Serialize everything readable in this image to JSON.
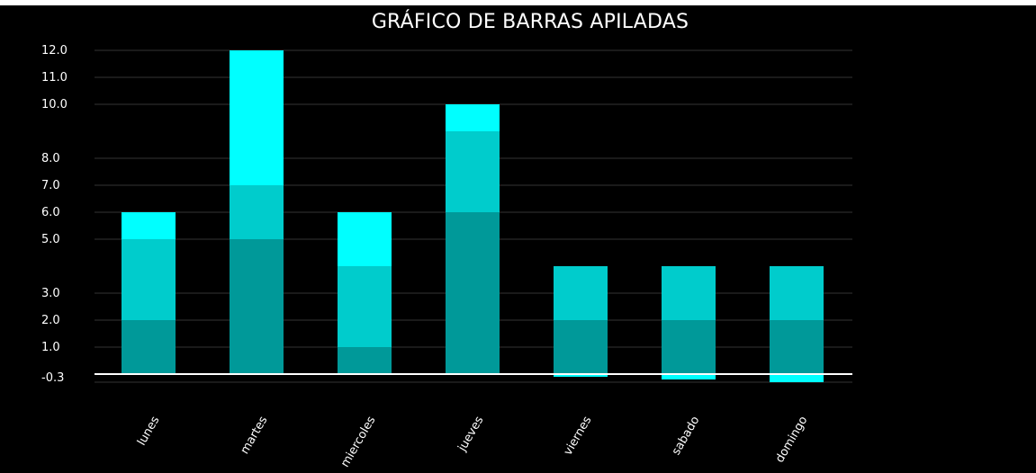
{
  "chart_data": {
    "type": "bar",
    "stacked": true,
    "title": "GRÁFICO DE BARRAS APILADAS",
    "categories": [
      "lunes",
      "martes",
      "miercoles",
      "jueves",
      "viernes",
      "sabado",
      "domingo"
    ],
    "series": [
      {
        "color": "#009999",
        "values": [
          2,
          5,
          1,
          6,
          2,
          2,
          2
        ]
      },
      {
        "color": "#00cccc",
        "values": [
          3,
          2,
          3,
          3,
          2,
          2,
          2
        ]
      },
      {
        "color": "#00ffff",
        "values": [
          1,
          5,
          2,
          1,
          -0.1,
          -0.2,
          -0.3
        ]
      }
    ],
    "y_ticks": [
      {
        "value": 12,
        "label": "12.0"
      },
      {
        "value": 11,
        "label": "11.0"
      },
      {
        "value": 10,
        "label": "10.0"
      },
      {
        "value": 8,
        "label": "8.0"
      },
      {
        "value": 7,
        "label": "7.0"
      },
      {
        "value": 6,
        "label": "6.0"
      },
      {
        "value": 5,
        "label": "5.0"
      },
      {
        "value": 3,
        "label": "3.0"
      },
      {
        "value": 2,
        "label": "2.0"
      },
      {
        "value": 1,
        "label": "1.0"
      },
      {
        "value": -0.3,
        "label": "-0.3"
      }
    ],
    "ylim": [
      -0.3,
      12
    ],
    "grid": true,
    "xlabel": "",
    "ylabel": "",
    "colors": {
      "background": "#000000",
      "grid": "#333333",
      "zero_line": "#ffffff",
      "text": "#ffffff"
    }
  }
}
